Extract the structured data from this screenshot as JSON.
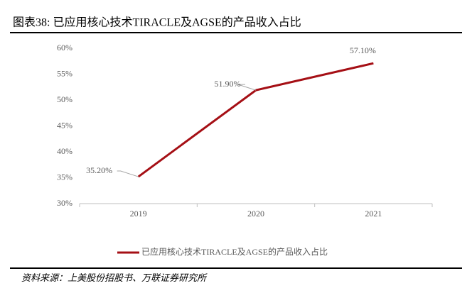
{
  "title": "图表38:  已应用核心技术TIRACLE及AGSE的产品收入占比",
  "source": "资料来源：上美股份招股书、万联证券研究所",
  "chart_data": {
    "type": "line",
    "categories": [
      "2019",
      "2020",
      "2021"
    ],
    "series": [
      {
        "name": "已应用核心技术TIRACLE及AGSE的产品收入占比",
        "color": "#a50f15",
        "values": [
          35.2,
          51.9,
          57.1
        ],
        "value_labels": [
          "35.20%",
          "51.90%",
          "57.10%"
        ]
      }
    ],
    "ylim": [
      30,
      60
    ],
    "yticks": [
      {
        "value": 30,
        "label": "30%"
      },
      {
        "value": 35,
        "label": "35%"
      },
      {
        "value": 40,
        "label": "40%"
      },
      {
        "value": 45,
        "label": "45%"
      },
      {
        "value": 50,
        "label": "50%"
      },
      {
        "value": 55,
        "label": "55%"
      },
      {
        "value": 60,
        "label": "60%"
      }
    ],
    "grid": false
  }
}
